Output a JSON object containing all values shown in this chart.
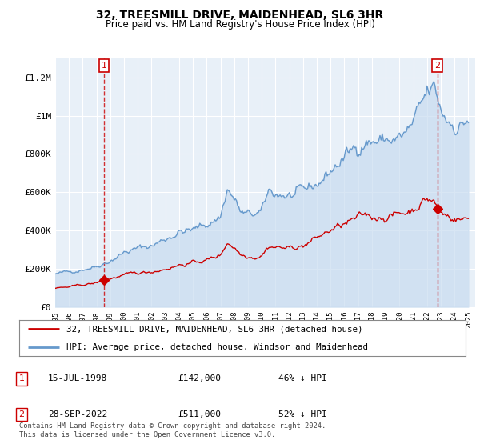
{
  "title": "32, TREESMILL DRIVE, MAIDENHEAD, SL6 3HR",
  "subtitle": "Price paid vs. HM Land Registry's House Price Index (HPI)",
  "hpi_label": "HPI: Average price, detached house, Windsor and Maidenhead",
  "price_label": "32, TREESMILL DRIVE, MAIDENHEAD, SL6 3HR (detached house)",
  "transaction1_date": "15-JUL-1998",
  "transaction1_price": "£142,000",
  "transaction1_hpi": "46% ↓ HPI",
  "transaction2_date": "28-SEP-2022",
  "transaction2_price": "£511,000",
  "transaction2_hpi": "52% ↓ HPI",
  "footer": "Contains HM Land Registry data © Crown copyright and database right 2024.\nThis data is licensed under the Open Government Licence v3.0.",
  "price_color": "#cc0000",
  "hpi_color": "#6699cc",
  "hpi_fill_color": "#ddeeff",
  "background_color": "#ffffff",
  "grid_color": "#cccccc",
  "ylim": [
    0,
    1300000
  ],
  "xlim_start": 1995.0,
  "xlim_end": 2025.5,
  "yticks": [
    0,
    200000,
    400000,
    600000,
    800000,
    1000000,
    1200000
  ],
  "ytick_labels": [
    "£0",
    "£200K",
    "£400K",
    "£600K",
    "£800K",
    "£1M",
    "£1.2M"
  ],
  "transaction1_x": 1998.54,
  "transaction1_y": 142000,
  "transaction2_x": 2022.75,
  "transaction2_y": 511000
}
